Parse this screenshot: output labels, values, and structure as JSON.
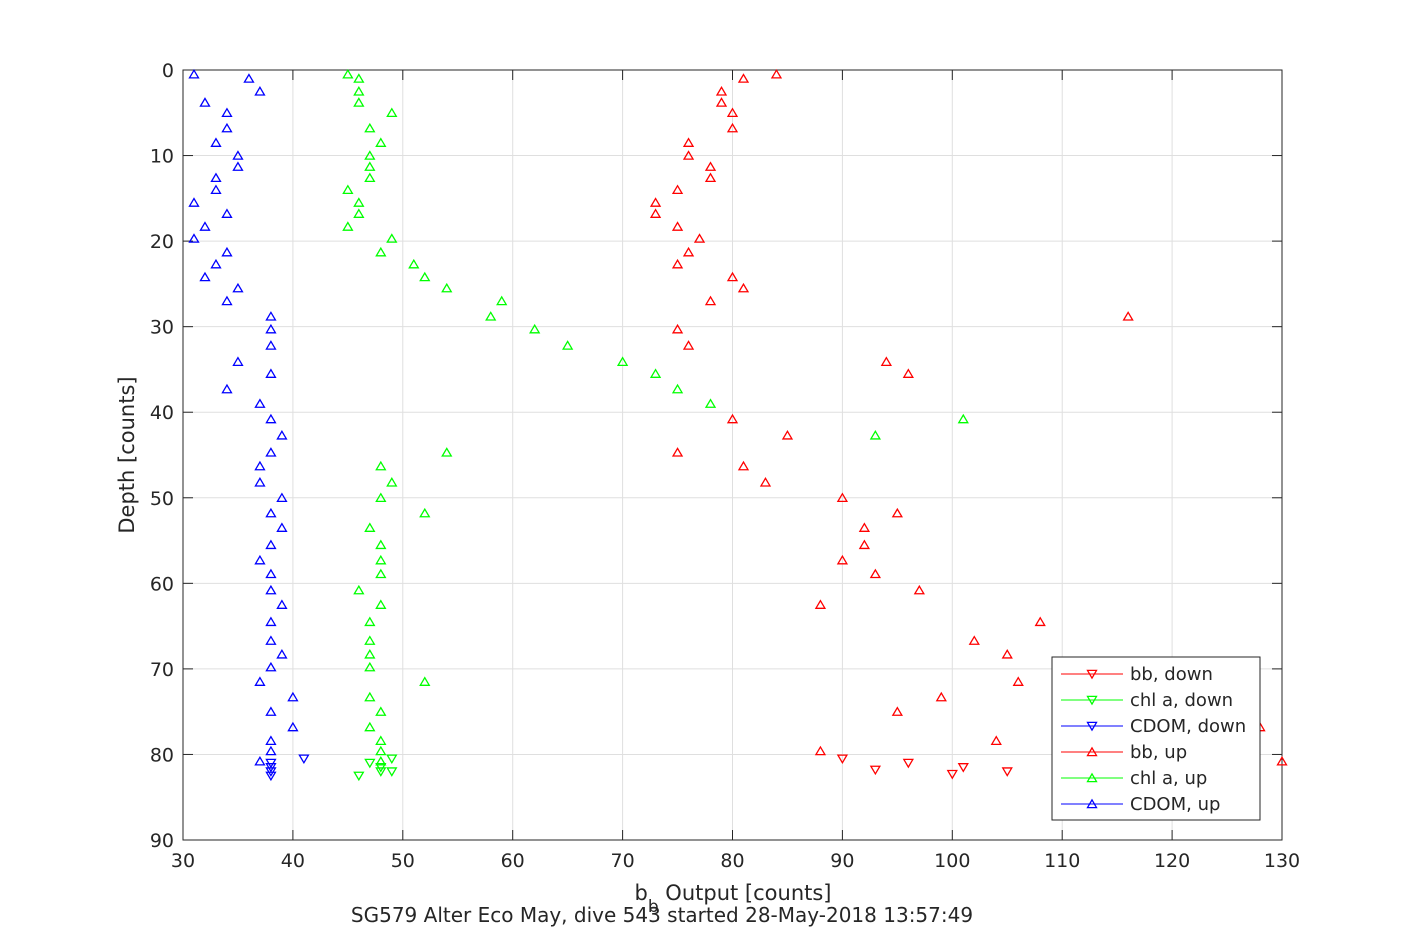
{
  "chart_data": {
    "type": "scatter",
    "title": "SG579 Alter Eco May, dive 543 started 28-May-2018 13:57:49",
    "xlabel_main": "b",
    "xlabel_sub": "b",
    "xlabel_rest": " Output [counts]",
    "ylabel": "Depth [counts]",
    "xlim": [
      30,
      130
    ],
    "ylim": [
      0,
      90
    ],
    "y_reversed": true,
    "grid": true,
    "legend_position": "lower-right",
    "xticks": [
      "30",
      "40",
      "50",
      "60",
      "70",
      "80",
      "90",
      "100",
      "110",
      "120",
      "130"
    ],
    "yticks": [
      "0",
      "10",
      "20",
      "30",
      "40",
      "50",
      "60",
      "70",
      "80",
      "90"
    ],
    "series": [
      {
        "name": "bb, down",
        "color": "#ff0000",
        "marker": "triangle-down",
        "points": [
          [
            90,
            80.5
          ],
          [
            96,
            81
          ],
          [
            101,
            81.5
          ],
          [
            105,
            82
          ],
          [
            100,
            82.3
          ],
          [
            93,
            81.8
          ]
        ]
      },
      {
        "name": "chl a, down",
        "color": "#00ff00",
        "marker": "triangle-down",
        "points": [
          [
            49,
            80.5
          ],
          [
            47,
            81
          ],
          [
            48,
            81.5
          ],
          [
            49,
            82
          ],
          [
            48,
            82
          ],
          [
            46,
            82.5
          ]
        ]
      },
      {
        "name": "CDOM, down",
        "color": "#0000ff",
        "marker": "triangle-down",
        "points": [
          [
            41,
            80.5
          ],
          [
            38,
            81
          ],
          [
            38,
            81.5
          ],
          [
            38,
            82
          ],
          [
            38,
            82.5
          ]
        ]
      },
      {
        "name": "bb, up",
        "color": "#ff0000",
        "marker": "triangle-up",
        "points": [
          [
            84,
            0.5
          ],
          [
            81,
            1
          ],
          [
            79,
            2.5
          ],
          [
            79,
            3.8
          ],
          [
            80,
            5
          ],
          [
            80,
            6.8
          ],
          [
            76,
            8.5
          ],
          [
            76,
            10
          ],
          [
            78,
            11.3
          ],
          [
            78,
            12.6
          ],
          [
            75,
            14
          ],
          [
            73,
            15.5
          ],
          [
            73,
            16.8
          ],
          [
            75,
            18.3
          ],
          [
            77,
            19.7
          ],
          [
            76,
            21.3
          ],
          [
            75,
            22.7
          ],
          [
            80,
            24.2
          ],
          [
            81,
            25.5
          ],
          [
            78,
            27
          ],
          [
            116,
            28.8
          ],
          [
            75,
            30.3
          ],
          [
            76,
            32.2
          ],
          [
            94,
            34.1
          ],
          [
            96,
            35.5
          ],
          [
            80,
            40.8
          ],
          [
            85,
            42.7
          ],
          [
            75,
            44.7
          ],
          [
            81,
            46.3
          ],
          [
            83,
            48.2
          ],
          [
            90,
            50
          ],
          [
            95,
            51.8
          ],
          [
            92,
            53.5
          ],
          [
            92,
            55.5
          ],
          [
            90,
            57.3
          ],
          [
            93,
            58.9
          ],
          [
            97,
            60.8
          ],
          [
            88,
            62.5
          ],
          [
            108,
            64.5
          ],
          [
            102,
            66.7
          ],
          [
            105,
            68.3
          ],
          [
            106,
            71.5
          ],
          [
            99,
            73.3
          ],
          [
            95,
            75
          ],
          [
            128,
            76.8
          ],
          [
            104,
            78.4
          ],
          [
            88,
            79.6
          ],
          [
            130,
            80.8
          ]
        ]
      },
      {
        "name": "chl a, up",
        "color": "#00ff00",
        "marker": "triangle-up",
        "points": [
          [
            45,
            0.5
          ],
          [
            46,
            1
          ],
          [
            46,
            2.5
          ],
          [
            46,
            3.8
          ],
          [
            49,
            5
          ],
          [
            47,
            6.8
          ],
          [
            48,
            8.5
          ],
          [
            47,
            10
          ],
          [
            47,
            11.3
          ],
          [
            47,
            12.6
          ],
          [
            45,
            14
          ],
          [
            46,
            15.5
          ],
          [
            46,
            16.8
          ],
          [
            45,
            18.3
          ],
          [
            49,
            19.7
          ],
          [
            48,
            21.3
          ],
          [
            51,
            22.7
          ],
          [
            52,
            24.2
          ],
          [
            54,
            25.5
          ],
          [
            59,
            27
          ],
          [
            58,
            28.8
          ],
          [
            62,
            30.3
          ],
          [
            65,
            32.2
          ],
          [
            70,
            34.1
          ],
          [
            73,
            35.5
          ],
          [
            75,
            37.3
          ],
          [
            78,
            39
          ],
          [
            101,
            40.8
          ],
          [
            93,
            42.7
          ],
          [
            54,
            44.7
          ],
          [
            48,
            46.3
          ],
          [
            49,
            48.2
          ],
          [
            48,
            50
          ],
          [
            52,
            51.8
          ],
          [
            47,
            53.5
          ],
          [
            48,
            55.5
          ],
          [
            48,
            57.3
          ],
          [
            48,
            58.9
          ],
          [
            46,
            60.8
          ],
          [
            48,
            62.5
          ],
          [
            47,
            64.5
          ],
          [
            47,
            66.7
          ],
          [
            47,
            68.3
          ],
          [
            47,
            69.8
          ],
          [
            52,
            71.5
          ],
          [
            47,
            73.3
          ],
          [
            48,
            75
          ],
          [
            47,
            76.8
          ],
          [
            48,
            78.4
          ],
          [
            48,
            79.6
          ],
          [
            48,
            80.8
          ]
        ]
      },
      {
        "name": "CDOM, up",
        "color": "#0000ff",
        "marker": "triangle-up",
        "points": [
          [
            31,
            0.5
          ],
          [
            36,
            1
          ],
          [
            37,
            2.5
          ],
          [
            32,
            3.8
          ],
          [
            34,
            5
          ],
          [
            34,
            6.8
          ],
          [
            33,
            8.5
          ],
          [
            35,
            10
          ],
          [
            35,
            11.3
          ],
          [
            33,
            12.6
          ],
          [
            33,
            14
          ],
          [
            31,
            15.5
          ],
          [
            34,
            16.8
          ],
          [
            32,
            18.3
          ],
          [
            31,
            19.7
          ],
          [
            34,
            21.3
          ],
          [
            33,
            22.7
          ],
          [
            32,
            24.2
          ],
          [
            35,
            25.5
          ],
          [
            34,
            27
          ],
          [
            38,
            28.8
          ],
          [
            38,
            30.3
          ],
          [
            38,
            32.2
          ],
          [
            35,
            34.1
          ],
          [
            38,
            35.5
          ],
          [
            34,
            37.3
          ],
          [
            37,
            39
          ],
          [
            38,
            40.8
          ],
          [
            39,
            42.7
          ],
          [
            38,
            44.7
          ],
          [
            37,
            46.3
          ],
          [
            37,
            48.2
          ],
          [
            39,
            50
          ],
          [
            38,
            51.8
          ],
          [
            39,
            53.5
          ],
          [
            38,
            55.5
          ],
          [
            37,
            57.3
          ],
          [
            38,
            58.9
          ],
          [
            38,
            60.8
          ],
          [
            39,
            62.5
          ],
          [
            38,
            64.5
          ],
          [
            38,
            66.7
          ],
          [
            39,
            68.3
          ],
          [
            38,
            69.8
          ],
          [
            37,
            71.5
          ],
          [
            40,
            73.3
          ],
          [
            38,
            75
          ],
          [
            40,
            76.8
          ],
          [
            38,
            78.4
          ],
          [
            38,
            79.6
          ],
          [
            37,
            80.8
          ]
        ]
      }
    ]
  }
}
